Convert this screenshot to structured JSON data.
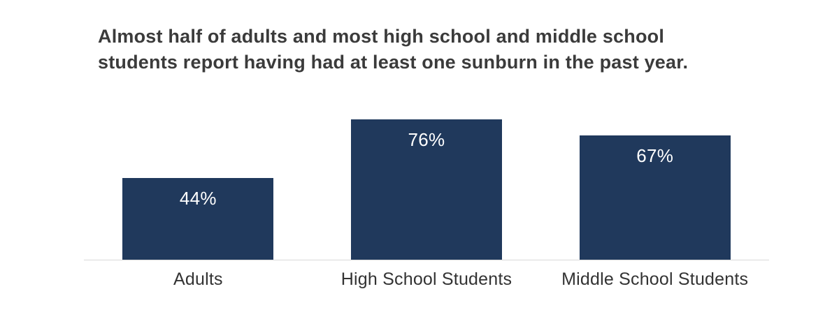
{
  "title": "Almost half of adults and most high school and middle school students report having had at least one sunburn in the past year.",
  "chart_data": {
    "type": "bar",
    "categories": [
      "Adults",
      "High School Students",
      "Middle School Students"
    ],
    "values": [
      44,
      76,
      67
    ],
    "value_labels": [
      "44%",
      "76%",
      "67%"
    ],
    "title": "Almost half of adults and most high school and middle school students report having had at least one sunburn in the past year.",
    "xlabel": "",
    "ylabel": "",
    "ylim": [
      0,
      80
    ],
    "grid": "off",
    "legend": "none",
    "bar_color": "#20395c",
    "value_label_color": "#ffffff",
    "axis_line_color": "#d9d9d9",
    "title_color": "#3b3b3b",
    "category_label_color": "#333333"
  }
}
